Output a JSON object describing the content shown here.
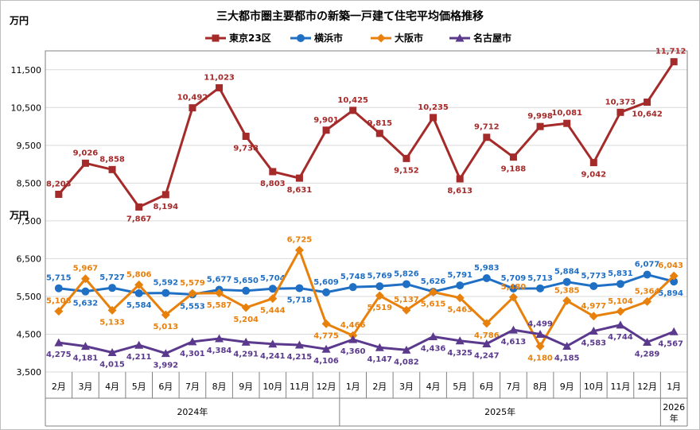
{
  "chart_data": {
    "type": "line",
    "title": "三大都市圏主要都市の新築一戸建て住宅平均価格推移",
    "ylabel_top": "万円",
    "ylabel_mid": "万円",
    "ylim": [
      3500,
      12000
    ],
    "yticks": [
      3500,
      4500,
      5500,
      6500,
      7500,
      8500,
      9500,
      10500,
      11500
    ],
    "ytick_labels": [
      "3,500",
      "4,500",
      "5,500",
      "6,500",
      "7,500",
      "8,500",
      "9,500",
      "10,500",
      "11,500"
    ],
    "categories": [
      "2月",
      "3月",
      "4月",
      "5月",
      "6月",
      "7月",
      "8月",
      "9月",
      "10月",
      "11月",
      "12月",
      "1月",
      "2月",
      "3月",
      "4月",
      "5月",
      "6月",
      "7月",
      "8月",
      "9月",
      "10月",
      "11月",
      "12月",
      "1月"
    ],
    "year_groups": [
      {
        "label": "2024年",
        "start": 0,
        "end": 10
      },
      {
        "label": "2025年",
        "start": 11,
        "end": 22
      },
      {
        "label": "2026年",
        "start": 23,
        "end": 23
      }
    ],
    "series": [
      {
        "name": "東京23区",
        "color": "#A52A2A",
        "marker": "square",
        "values": [
          8203,
          9026,
          8858,
          7867,
          8194,
          10492,
          11023,
          9738,
          8803,
          8631,
          9901,
          10425,
          9815,
          9152,
          10235,
          8613,
          9712,
          9188,
          9998,
          10081,
          9042,
          10373,
          10642,
          11712
        ],
        "labels": [
          "8,203",
          "9,026",
          "8,858",
          "7,867",
          "8,194",
          "10,492",
          "11,023",
          "9,738",
          "8,803",
          "8,631",
          "9,901",
          "10,425",
          "9,815",
          "9,152",
          "10,235",
          "8,613",
          "9,712",
          "9,188",
          "9,998",
          "10,081",
          "9,042",
          "10,373",
          "10,642",
          "11,712"
        ],
        "label_pos": [
          "above",
          "above",
          "above",
          "below",
          "below",
          "above",
          "above",
          "below",
          "below",
          "below",
          "above",
          "above",
          "above",
          "below",
          "above",
          "below",
          "above",
          "below",
          "above",
          "above",
          "below",
          "above",
          "below",
          "above"
        ]
      },
      {
        "name": "横浜市",
        "color": "#1F6FC5",
        "marker": "circle",
        "values": [
          5715,
          5632,
          5727,
          5584,
          5592,
          5553,
          5677,
          5650,
          5704,
          5718,
          5609,
          5748,
          5769,
          5826,
          5626,
          5791,
          5983,
          5709,
          5713,
          5884,
          5773,
          5831,
          6077,
          5894
        ],
        "labels": [
          "5,715",
          "5,632",
          "5,727",
          "5,584",
          "5,592",
          "5,553",
          "5,677",
          "5,650",
          "5,704",
          "5,718",
          "5,609",
          "5,748",
          "5,769",
          "5,826",
          "5,626",
          "5,791",
          "5,983",
          "5,709",
          "5,713",
          "5,884",
          "5,773",
          "5,831",
          "6,077",
          "5,894"
        ],
        "label_pos": [
          "above",
          "below",
          "above",
          "below",
          "above",
          "below",
          "above",
          "above",
          "above",
          "below",
          "above",
          "above",
          "above",
          "above",
          "above",
          "above",
          "above",
          "above",
          "above",
          "above",
          "above",
          "above",
          "above",
          "below"
        ]
      },
      {
        "name": "大阪市",
        "color": "#E8800C",
        "marker": "diamond",
        "values": [
          5108,
          5967,
          5133,
          5806,
          5013,
          5579,
          5587,
          5204,
          5444,
          6725,
          4775,
          4466,
          5519,
          5137,
          5615,
          5463,
          4786,
          5480,
          4180,
          5385,
          4977,
          5104,
          5364,
          6043
        ],
        "labels": [
          "5,108",
          "5,967",
          "5,133",
          "5,806",
          "5,013",
          "5,579",
          "5,587",
          "5,204",
          "5,444",
          "6,725",
          "4,775",
          "4,466",
          "5,519",
          "5,137",
          "5,615",
          "5,463",
          "4,786",
          "5,480",
          "4,180",
          "5,385",
          "4,977",
          "5,104",
          "5,364",
          "6,043"
        ],
        "label_pos": [
          "above",
          "above",
          "below",
          "above",
          "below",
          "above",
          "below",
          "below",
          "below",
          "above",
          "below",
          "above",
          "below",
          "above",
          "below",
          "below",
          "below",
          "above",
          "below",
          "above",
          "above",
          "above",
          "above",
          "above"
        ]
      },
      {
        "name": "名古屋市",
        "color": "#5B3A8E",
        "marker": "triangle",
        "values": [
          4275,
          4181,
          4015,
          4211,
          3992,
          4301,
          4384,
          4291,
          4241,
          4215,
          4106,
          4360,
          4147,
          4082,
          4436,
          4325,
          4247,
          4613,
          4499,
          4185,
          4583,
          4744,
          4289,
          4567
        ],
        "labels": [
          "4,275",
          "4,181",
          "4,015",
          "4,211",
          "3,992",
          "4,301",
          "4,384",
          "4,291",
          "4,241",
          "4,215",
          "4,106",
          "4,360",
          "4,147",
          "4,082",
          "4,436",
          "4,325",
          "4,247",
          "4,613",
          "4,499",
          "4,185",
          "4,583",
          "4,744",
          "4,289",
          "4,567"
        ],
        "label_pos": [
          "below",
          "below",
          "below",
          "below",
          "below",
          "below",
          "below",
          "below",
          "below",
          "below",
          "below",
          "below",
          "below",
          "below",
          "below",
          "below",
          "below",
          "below",
          "above",
          "below",
          "below",
          "below",
          "below",
          "below"
        ]
      }
    ]
  }
}
